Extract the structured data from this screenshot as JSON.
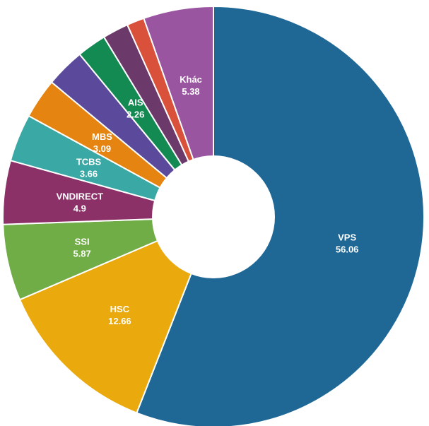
{
  "chart_data": {
    "type": "pie",
    "donut": true,
    "title": "",
    "slices": [
      {
        "label": "VPS",
        "value": 56.06,
        "display": "56.06",
        "color": "#1f6896"
      },
      {
        "label": "HSC",
        "value": 12.66,
        "display": "12.66",
        "color": "#eaa90c"
      },
      {
        "label": "SSI",
        "value": 5.87,
        "display": "5.87",
        "color": "#70ad47"
      },
      {
        "label": "VNDIRECT",
        "value": 4.9,
        "display": "4.9",
        "color": "#8b3168"
      },
      {
        "label": "TCBS",
        "value": 3.66,
        "display": "3.66",
        "color": "#3aa8a5"
      },
      {
        "label": "MBS",
        "value": 3.09,
        "display": "3.09",
        "color": "#e58410"
      },
      {
        "label": "",
        "value": 3.0,
        "display": "",
        "color": "#5b4a9b"
      },
      {
        "label": "AIS",
        "value": 2.26,
        "display": "2.26",
        "color": "#138a52"
      },
      {
        "label": "",
        "value": 2.0,
        "display": "",
        "color": "#6b3a6b"
      },
      {
        "label": "",
        "value": 1.34,
        "display": "",
        "color": "#d9513a"
      },
      {
        "label": "Khác",
        "value": 5.38,
        "display": "5.38",
        "color": "#9a55a0"
      }
    ]
  }
}
